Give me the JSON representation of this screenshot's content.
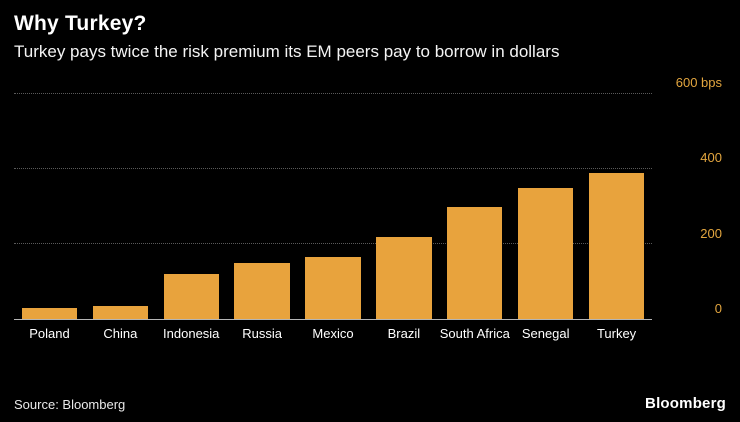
{
  "header": {
    "title": "Why Turkey?",
    "subtitle": "Turkey pays twice the risk premium its EM peers pay to borrow in dollars"
  },
  "chart_data": {
    "type": "bar",
    "title": "Why Turkey?",
    "subtitle": "Turkey pays twice the risk premium its EM peers pay to borrow in dollars",
    "categories": [
      "Poland",
      "China",
      "Indonesia",
      "Russia",
      "Mexico",
      "Brazil",
      "South Africa",
      "Senegal",
      "Turkey"
    ],
    "values": [
      30,
      35,
      120,
      150,
      165,
      220,
      300,
      350,
      390
    ],
    "unit": "bps",
    "xlabel": "",
    "ylabel": "",
    "ylim": [
      0,
      600
    ],
    "yticks": [
      0,
      200,
      400,
      600
    ],
    "ytick_labels": [
      "0",
      "200",
      "400",
      "600 bps"
    ],
    "grid": true,
    "legend": "none",
    "axis_side": "right",
    "bar_color": "#e8a33d",
    "tick_label_color": "#e3a63f",
    "background_color": "#000000"
  },
  "footer": {
    "source": "Source: Bloomberg",
    "brand": "Bloomberg"
  }
}
